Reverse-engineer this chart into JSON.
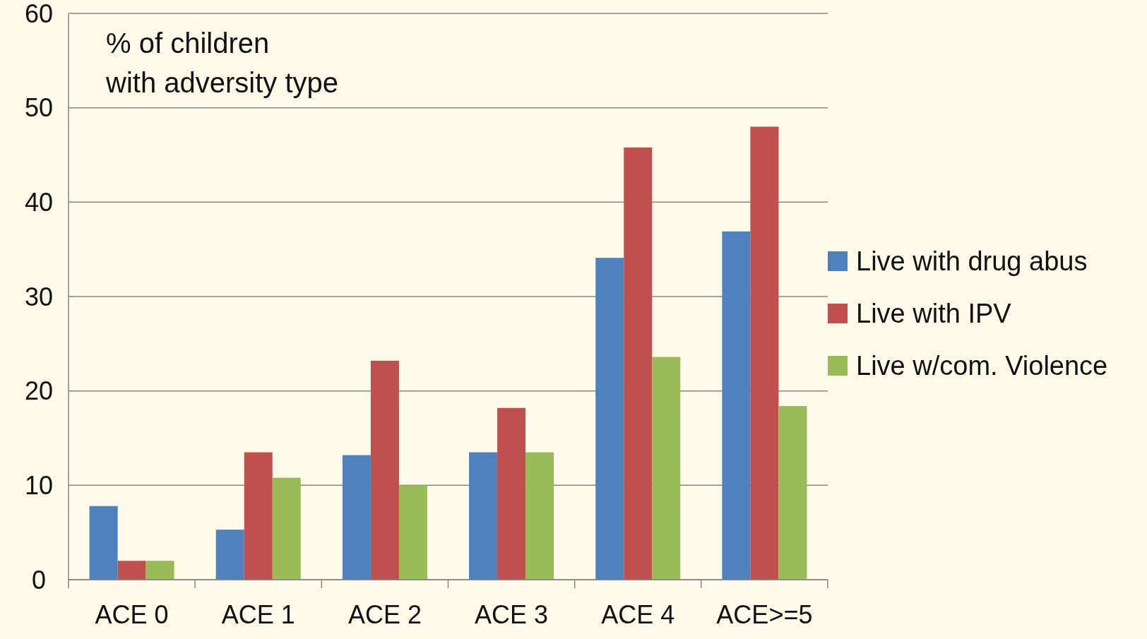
{
  "chart_data": {
    "type": "bar",
    "ylabel": "% of children with adversity type",
    "categories": [
      "ACE 0",
      "ACE 1",
      "ACE 2",
      "ACE 3",
      "ACE 4",
      "ACE>=5"
    ],
    "series": [
      {
        "name": "Live with drug abus",
        "color": "#4f81bd",
        "values": [
          7.8,
          5.3,
          13.2,
          13.5,
          34.1,
          36.9
        ]
      },
      {
        "name": "Live with IPV",
        "color": "#c0504d",
        "values": [
          2.0,
          13.5,
          23.2,
          18.2,
          45.8,
          48.0
        ]
      },
      {
        "name": "Live w/com. Violence",
        "color": "#9bbb59",
        "values": [
          2.0,
          10.8,
          10.0,
          13.5,
          23.6,
          18.4
        ]
      }
    ],
    "ylim": [
      0,
      60
    ],
    "yticks": [
      0,
      10,
      20,
      30,
      40,
      50,
      60
    ],
    "grid": "y",
    "legend": "right"
  }
}
